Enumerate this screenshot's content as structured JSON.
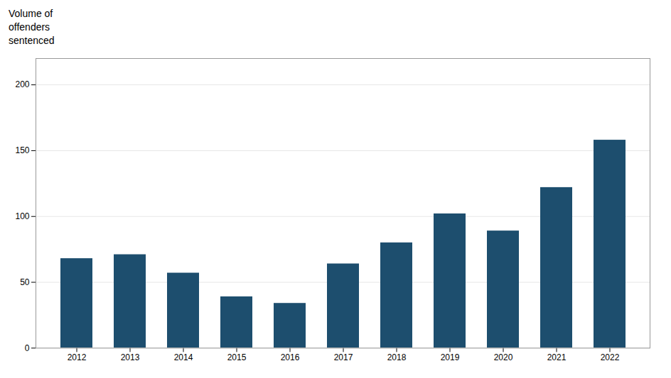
{
  "chart_data": {
    "type": "bar",
    "ylabel": "Volume of\noffenders\nsentenced",
    "categories": [
      "2012",
      "2013",
      "2014",
      "2015",
      "2016",
      "2017",
      "2018",
      "2019",
      "2020",
      "2021",
      "2022"
    ],
    "values": [
      68,
      71,
      57,
      39,
      34,
      64,
      80,
      102,
      89,
      122,
      158
    ],
    "color": "#1d4e6e",
    "ylim": [
      0,
      220
    ],
    "yticks": [
      0,
      50,
      100,
      150,
      200
    ],
    "grid": true
  }
}
